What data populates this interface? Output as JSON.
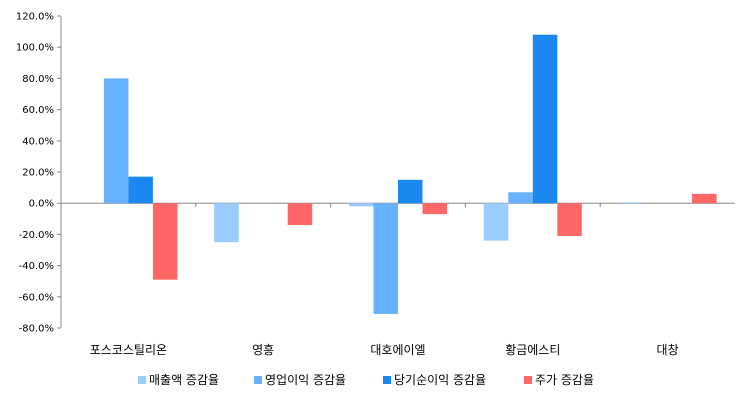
{
  "chart_data": {
    "type": "bar",
    "categories": [
      "포스코스틸리온",
      "영흥",
      "대호에이엘",
      "황금에스티",
      "대창"
    ],
    "series": [
      {
        "name": "매출액 증감율",
        "color": "#99ccff",
        "values": [
          0,
          -25,
          -2,
          -24,
          0.5
        ]
      },
      {
        "name": "영업이익 증감율",
        "color": "#66b2ff",
        "values": [
          80,
          0,
          -71,
          7,
          0
        ]
      },
      {
        "name": "당기순이익 증감율",
        "color": "#1a88f0",
        "values": [
          17,
          0,
          15,
          108,
          0
        ]
      },
      {
        "name": "주가 증감율",
        "color": "#ff6666",
        "values": [
          -49,
          -14,
          -7,
          -21,
          6
        ]
      }
    ],
    "yticks": [
      "120.0%",
      "100.0%",
      "80.0%",
      "60.0%",
      "40.0%",
      "20.0%",
      "0.0%",
      "-20.0%",
      "-40.0%",
      "-60.0%",
      "-80.0%"
    ],
    "ylim": [
      -80,
      120
    ],
    "grid": false,
    "legend": "bottom"
  }
}
